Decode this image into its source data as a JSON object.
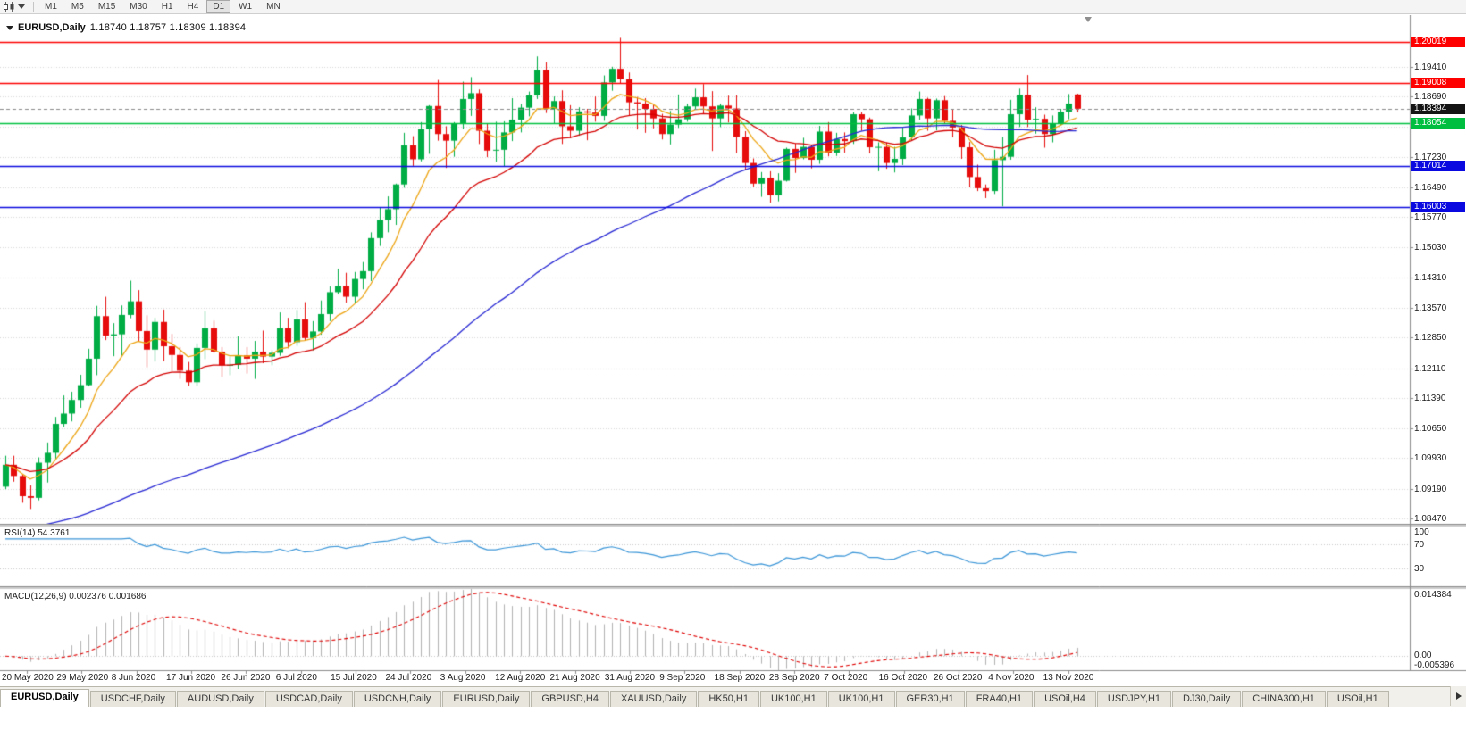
{
  "icons": {
    "toolbar_chart_type": "candlestick-chart-icon",
    "toolbar_dropdown": "caret-down-icon",
    "chart_collapse": "caret-down-icon",
    "chart_shift": "triangle-down-icon",
    "tab_scroll_right": "triangle-right-icon"
  },
  "toolbar": {
    "timeframes": [
      "M1",
      "M5",
      "M15",
      "M30",
      "H1",
      "H4",
      "D1",
      "W1",
      "MN"
    ],
    "active": "D1"
  },
  "chart_header": {
    "symbol": "EURUSD,Daily",
    "ohlc": "1.18740  1.18757  1.18309  1.18394"
  },
  "chart_data": {
    "type": "candlestick",
    "symbol": "EURUSD",
    "period": "Daily",
    "visible_price_range": [
      1.0834,
      1.2066
    ],
    "y_ticks": [
      "1.19410",
      "1.18690",
      "1.17950",
      "1.17230",
      "1.16490",
      "1.15770",
      "1.15030",
      "1.14310",
      "1.13570",
      "1.12850",
      "1.12110",
      "1.11390",
      "1.10650",
      "1.09930",
      "1.09190",
      "1.08470"
    ],
    "x_labels": [
      "20 May 2020",
      "29 May 2020",
      "8 Jun 2020",
      "17 Jun 2020",
      "26 Jun 2020",
      "6 Jul 2020",
      "15 Jul 2020",
      "24 Jul 2020",
      "3 Aug 2020",
      "12 Aug 2020",
      "21 Aug 2020",
      "31 Aug 2020",
      "9 Sep 2020",
      "18 Sep 2020",
      "28 Sep 2020",
      "7 Oct 2020",
      "16 Oct 2020",
      "26 Oct 2020",
      "4 Nov 2020",
      "13 Nov 2020"
    ],
    "levels": [
      {
        "price": 1.20019,
        "label": "1.20019",
        "color": "#fe0000",
        "style": "solid",
        "kind": "resistance"
      },
      {
        "price": 1.19008,
        "label": "1.19008",
        "color": "#fe0000",
        "style": "solid",
        "kind": "resistance"
      },
      {
        "price": 1.18394,
        "label": "1.18394",
        "color": "#141414",
        "style": "dashed",
        "kind": "current-price"
      },
      {
        "price": 1.18054,
        "label": "1.18054",
        "color": "#00bf40",
        "style": "solid",
        "kind": "support"
      },
      {
        "price": 1.17014,
        "label": "1.17014",
        "color": "#0a0ae0",
        "style": "solid",
        "kind": "support"
      },
      {
        "price": 1.16003,
        "label": "1.16003",
        "color": "#0a0ae0",
        "style": "solid",
        "kind": "support"
      }
    ],
    "candle_colors": {
      "up": "#00ad45",
      "down": "#e60c0c"
    },
    "moving_averages": [
      {
        "name": "fast",
        "color": "#eda514",
        "period": 8,
        "method": "ema"
      },
      {
        "name": "medium",
        "color": "#d40000",
        "period": 20,
        "method": "ema"
      },
      {
        "name": "slow",
        "color": "#2828d4",
        "period": 60,
        "method": "sma",
        "seed": 1.082
      }
    ],
    "indicators": [
      {
        "name": "RSI",
        "label": "RSI(14) 54.3761",
        "params": [
          14
        ],
        "value": 54.3761,
        "scale_labels": [
          "100",
          "70",
          "30"
        ],
        "levels": [
          70,
          30
        ],
        "range": [
          0,
          100
        ],
        "color": "#3b96d8"
      },
      {
        "name": "MACD",
        "label": "MACD(12,26,9) 0.002376 0.001686",
        "params": [
          12,
          26,
          9
        ],
        "values": [
          0.002376,
          0.001686
        ],
        "axis_labels": [
          "0.014384",
          "0.00",
          "-0.005396"
        ],
        "histogram_color": "#b2b2b2",
        "signal_color": "#e00000"
      }
    ],
    "candles": [
      [
        1.0924,
        1.0999,
        1.0918,
        1.0977
      ],
      [
        1.0977,
        1.0999,
        1.0936,
        1.095
      ],
      [
        1.095,
        1.0954,
        1.0885,
        1.0901
      ],
      [
        1.0901,
        1.0927,
        1.087,
        1.0897
      ],
      [
        1.0897,
        1.0995,
        1.0891,
        1.0982
      ],
      [
        1.0982,
        1.1031,
        1.0934,
        1.1006
      ],
      [
        1.1006,
        1.1093,
        1.0992,
        1.1076
      ],
      [
        1.1076,
        1.1145,
        1.1069,
        1.1101
      ],
      [
        1.1101,
        1.1154,
        1.1082,
        1.1134
      ],
      [
        1.1134,
        1.1195,
        1.1115,
        1.117
      ],
      [
        1.117,
        1.1258,
        1.1167,
        1.1234
      ],
      [
        1.1234,
        1.1362,
        1.1194,
        1.1337
      ],
      [
        1.1337,
        1.1384,
        1.1279,
        1.129
      ],
      [
        1.129,
        1.132,
        1.124,
        1.1293
      ],
      [
        1.1293,
        1.1363,
        1.1241,
        1.134
      ],
      [
        1.134,
        1.1423,
        1.1332,
        1.1373
      ],
      [
        1.1373,
        1.14,
        1.1277,
        1.1301
      ],
      [
        1.1301,
        1.1339,
        1.1213,
        1.1256
      ],
      [
        1.1256,
        1.1333,
        1.1227,
        1.1323
      ],
      [
        1.1323,
        1.1353,
        1.1228,
        1.1264
      ],
      [
        1.1264,
        1.1294,
        1.1204,
        1.1243
      ],
      [
        1.1243,
        1.1262,
        1.1185,
        1.1205
      ],
      [
        1.1205,
        1.1226,
        1.1168,
        1.1177
      ],
      [
        1.1177,
        1.1271,
        1.1168,
        1.126
      ],
      [
        1.126,
        1.1349,
        1.1233,
        1.1308
      ],
      [
        1.1308,
        1.1326,
        1.1248,
        1.1251
      ],
      [
        1.1251,
        1.1262,
        1.119,
        1.1218
      ],
      [
        1.1218,
        1.1239,
        1.1194,
        1.1219
      ],
      [
        1.1219,
        1.1288,
        1.1209,
        1.1242
      ],
      [
        1.1242,
        1.1262,
        1.1198,
        1.1234
      ],
      [
        1.1234,
        1.1277,
        1.1185,
        1.1251
      ],
      [
        1.1251,
        1.1302,
        1.1223,
        1.1239
      ],
      [
        1.1239,
        1.1254,
        1.1218,
        1.1248
      ],
      [
        1.1248,
        1.1346,
        1.1241,
        1.1308
      ],
      [
        1.1308,
        1.1333,
        1.1259,
        1.1274
      ],
      [
        1.1274,
        1.1352,
        1.1265,
        1.1329
      ],
      [
        1.1329,
        1.1371,
        1.1279,
        1.1284
      ],
      [
        1.1284,
        1.1325,
        1.1254,
        1.13
      ],
      [
        1.13,
        1.1375,
        1.1292,
        1.1342
      ],
      [
        1.1342,
        1.1409,
        1.1325,
        1.1395
      ],
      [
        1.1395,
        1.1452,
        1.139,
        1.141
      ],
      [
        1.141,
        1.1442,
        1.137,
        1.1384
      ],
      [
        1.1384,
        1.1444,
        1.1369,
        1.1427
      ],
      [
        1.1427,
        1.1468,
        1.1402,
        1.1446
      ],
      [
        1.1446,
        1.154,
        1.1422,
        1.1526
      ],
      [
        1.1526,
        1.1601,
        1.1507,
        1.157
      ],
      [
        1.157,
        1.1627,
        1.154,
        1.1596
      ],
      [
        1.1596,
        1.1658,
        1.1558,
        1.1656
      ],
      [
        1.1656,
        1.1781,
        1.1648,
        1.1751
      ],
      [
        1.1751,
        1.1773,
        1.1701,
        1.1717
      ],
      [
        1.1717,
        1.1807,
        1.1712,
        1.179
      ],
      [
        1.179,
        1.1848,
        1.173,
        1.1846
      ],
      [
        1.1846,
        1.1909,
        1.1762,
        1.1778
      ],
      [
        1.1778,
        1.1797,
        1.1696,
        1.1762
      ],
      [
        1.1762,
        1.1807,
        1.1723,
        1.1803
      ],
      [
        1.1803,
        1.1905,
        1.179,
        1.1863
      ],
      [
        1.1863,
        1.1916,
        1.1822,
        1.1877
      ],
      [
        1.1877,
        1.1886,
        1.1754,
        1.1786
      ],
      [
        1.1786,
        1.1804,
        1.1722,
        1.1738
      ],
      [
        1.1738,
        1.1808,
        1.1711,
        1.174
      ],
      [
        1.174,
        1.1809,
        1.17,
        1.1782
      ],
      [
        1.1782,
        1.1865,
        1.1761,
        1.1813
      ],
      [
        1.1813,
        1.1851,
        1.1782,
        1.1842
      ],
      [
        1.1842,
        1.1881,
        1.1821,
        1.1872
      ],
      [
        1.1872,
        1.1966,
        1.1863,
        1.1933
      ],
      [
        1.1933,
        1.1952,
        1.1829,
        1.1839
      ],
      [
        1.1839,
        1.1869,
        1.1803,
        1.1858
      ],
      [
        1.1858,
        1.1884,
        1.1754,
        1.1797
      ],
      [
        1.1797,
        1.1848,
        1.1768,
        1.1786
      ],
      [
        1.1786,
        1.1843,
        1.1774,
        1.1833
      ],
      [
        1.1833,
        1.1839,
        1.1763,
        1.183
      ],
      [
        1.183,
        1.1869,
        1.1808,
        1.1822
      ],
      [
        1.1822,
        1.192,
        1.181,
        1.1903
      ],
      [
        1.1903,
        1.1941,
        1.1883,
        1.1936
      ],
      [
        1.1936,
        1.2011,
        1.1901,
        1.1911
      ],
      [
        1.1911,
        1.1927,
        1.1822,
        1.1855
      ],
      [
        1.1855,
        1.1868,
        1.1789,
        1.1852
      ],
      [
        1.1852,
        1.1865,
        1.1781,
        1.1839
      ],
      [
        1.1839,
        1.1848,
        1.1792,
        1.1816
      ],
      [
        1.1816,
        1.1827,
        1.1765,
        1.1778
      ],
      [
        1.1778,
        1.1834,
        1.1753,
        1.1801
      ],
      [
        1.1801,
        1.1874,
        1.1793,
        1.1814
      ],
      [
        1.1814,
        1.1852,
        1.1808,
        1.1845
      ],
      [
        1.1845,
        1.1888,
        1.1839,
        1.1867
      ],
      [
        1.1867,
        1.1899,
        1.1827,
        1.1845
      ],
      [
        1.1845,
        1.1882,
        1.1737,
        1.1816
      ],
      [
        1.1816,
        1.1852,
        1.1795,
        1.1847
      ],
      [
        1.1847,
        1.1871,
        1.1806,
        1.184
      ],
      [
        1.184,
        1.1872,
        1.1732,
        1.1771
      ],
      [
        1.1771,
        1.1785,
        1.1692,
        1.1708
      ],
      [
        1.1708,
        1.1719,
        1.1651,
        1.1658
      ],
      [
        1.1658,
        1.1686,
        1.1626,
        1.1672
      ],
      [
        1.1672,
        1.1688,
        1.1612,
        1.163
      ],
      [
        1.163,
        1.1683,
        1.1615,
        1.1665
      ],
      [
        1.1665,
        1.1745,
        1.1663,
        1.1742
      ],
      [
        1.1742,
        1.1755,
        1.1684,
        1.172
      ],
      [
        1.172,
        1.1769,
        1.1717,
        1.1747
      ],
      [
        1.1747,
        1.1752,
        1.1695,
        1.1716
      ],
      [
        1.1716,
        1.1798,
        1.1706,
        1.1784
      ],
      [
        1.1784,
        1.1807,
        1.1724,
        1.1733
      ],
      [
        1.1733,
        1.1781,
        1.1725,
        1.1766
      ],
      [
        1.1766,
        1.1782,
        1.1733,
        1.1761
      ],
      [
        1.1761,
        1.1831,
        1.1754,
        1.1826
      ],
      [
        1.1826,
        1.1831,
        1.1786,
        1.1814
      ],
      [
        1.1814,
        1.1818,
        1.1731,
        1.1746
      ],
      [
        1.1746,
        1.1758,
        1.1688,
        1.1747
      ],
      [
        1.1747,
        1.1758,
        1.1694,
        1.1708
      ],
      [
        1.1708,
        1.1747,
        1.1685,
        1.1718
      ],
      [
        1.1718,
        1.1794,
        1.1703,
        1.177
      ],
      [
        1.177,
        1.184,
        1.1762,
        1.1823
      ],
      [
        1.1823,
        1.1881,
        1.1813,
        1.1863
      ],
      [
        1.1863,
        1.1866,
        1.1786,
        1.1816
      ],
      [
        1.1816,
        1.1864,
        1.1787,
        1.186
      ],
      [
        1.186,
        1.187,
        1.1803,
        1.181
      ],
      [
        1.181,
        1.1837,
        1.177,
        1.1794
      ],
      [
        1.1794,
        1.18,
        1.1718,
        1.1746
      ],
      [
        1.1746,
        1.1759,
        1.1649,
        1.1674
      ],
      [
        1.1674,
        1.1704,
        1.164,
        1.1647
      ],
      [
        1.1647,
        1.1656,
        1.1623,
        1.164
      ],
      [
        1.164,
        1.174,
        1.1633,
        1.1715
      ],
      [
        1.1715,
        1.1771,
        1.1603,
        1.1723
      ],
      [
        1.1723,
        1.1861,
        1.1716,
        1.1826
      ],
      [
        1.1826,
        1.1888,
        1.1795,
        1.1873
      ],
      [
        1.1873,
        1.1921,
        1.1795,
        1.1813
      ],
      [
        1.1813,
        1.1843,
        1.1779,
        1.1815
      ],
      [
        1.1815,
        1.1825,
        1.1745,
        1.1778
      ],
      [
        1.1778,
        1.1823,
        1.1758,
        1.1804
      ],
      [
        1.1804,
        1.1839,
        1.1799,
        1.1832
      ],
      [
        1.1832,
        1.1875,
        1.1814,
        1.1852
      ],
      [
        1.1874,
        1.18757,
        1.18309,
        1.18394
      ]
    ]
  },
  "tabs": {
    "active_index": 0,
    "items": [
      "EURUSD,Daily",
      "USDCHF,Daily",
      "AUDUSD,Daily",
      "USDCAD,Daily",
      "USDCNH,Daily",
      "EURUSD,Daily",
      "GBPUSD,H4",
      "XAUUSD,Daily",
      "HK50,H1",
      "UK100,H1",
      "UK100,H1",
      "GER30,H1",
      "FRA40,H1",
      "USOil,H4",
      "USDJPY,H1",
      "DJ30,Daily",
      "CHINA300,H1",
      "USOil,H1"
    ]
  }
}
